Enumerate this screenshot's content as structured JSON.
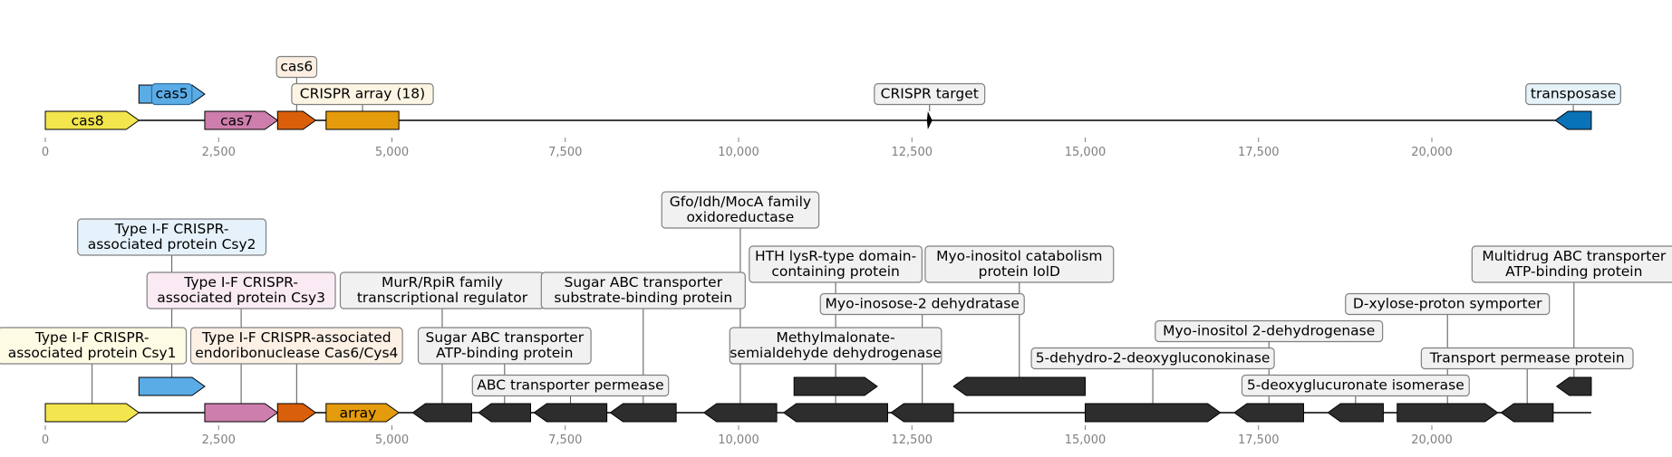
{
  "axis": {
    "ticks": [
      0,
      2500,
      5000,
      7500,
      10000,
      12500,
      15000,
      17500,
      20000
    ],
    "tick_labels": [
      "0",
      "2,500",
      "5,000",
      "7,500",
      "10,000",
      "12,500",
      "15,000",
      "17,500",
      "20,000"
    ]
  },
  "track1": {
    "line_end": 22300,
    "features": [
      {
        "name": "cas8",
        "start": 0,
        "end": 1350,
        "strand": 1,
        "color": "#f2e54e",
        "inline": "cas8"
      },
      {
        "name": "cas5",
        "start": 1350,
        "end": 2300,
        "strand": 1,
        "color": "#5aace6",
        "raised": true,
        "box": "cas5",
        "boxfill": "#5aace6",
        "boxstroke": "#2f6ea0"
      },
      {
        "name": "cas7",
        "start": 2300,
        "end": 3350,
        "strand": 1,
        "color": "#cd7eac",
        "inline": "cas7"
      },
      {
        "name": "cas6",
        "start": 3350,
        "end": 3900,
        "strand": 1,
        "color": "#d95f0b",
        "box": "cas6",
        "boxfill": "#fcefe2"
      },
      {
        "name": "CRISPR array (18)",
        "start": 4050,
        "end": 5100,
        "strand": 0,
        "color": "#e59c0c",
        "box": "CRISPR array (18)",
        "boxfill": "#fdf5e3"
      },
      {
        "name": "CRISPR target",
        "start": 12730,
        "end": 12780,
        "strand": 0,
        "color": "#000000",
        "box": "CRISPR target",
        "boxfill": "#f1f1f1"
      },
      {
        "name": "transposase",
        "start": 21780,
        "end": 22300,
        "strand": -1,
        "color": "#0a72b6",
        "box": "transposase",
        "boxfill": "#e5f2f9"
      }
    ]
  },
  "track2": {
    "line_end": 22300,
    "features": [
      {
        "name": "cas8",
        "start": 0,
        "end": 1350,
        "strand": 1,
        "color": "#f2e54e",
        "box": "Type I-F CRISPR-\nassociated protein Csy1",
        "boxfill": "#fdfbe3"
      },
      {
        "name": "cas5",
        "start": 1350,
        "end": 2300,
        "strand": 1,
        "color": "#5aace6",
        "raised": true,
        "box": "Type I-F CRISPR-\nassociated protein Csy2",
        "boxfill": "#e6f2fb"
      },
      {
        "name": "cas7",
        "start": 2300,
        "end": 3350,
        "strand": 1,
        "color": "#cd7eac",
        "box": "Type I-F CRISPR-\nassociated protein Csy3",
        "boxfill": "#f9eaf3"
      },
      {
        "name": "cas6",
        "start": 3350,
        "end": 3900,
        "strand": 1,
        "color": "#d95f0b",
        "box": "Type I-F CRISPR-associated\nendoribonuclease Cas6/Cys4",
        "boxfill": "#fdf0e5"
      },
      {
        "name": "array",
        "start": 4050,
        "end": 5100,
        "strand": 1,
        "color": "#e59c0c",
        "inline": "array"
      },
      {
        "name": "MurR/RpiR",
        "start": 5300,
        "end": 6150,
        "strand": -1,
        "color": "#2d2d2d",
        "box": "MurR/RpiR family\ntranscriptional regulator",
        "boxfill": "#f1f1f1"
      },
      {
        "name": "Sugar ABC ATP",
        "start": 6250,
        "end": 7000,
        "strand": -1,
        "color": "#2d2d2d",
        "box": "Sugar ABC transporter\nATP-binding protein",
        "boxfill": "#f1f1f1"
      },
      {
        "name": "ABC permease",
        "start": 7050,
        "end": 8100,
        "strand": -1,
        "color": "#2d2d2d",
        "box": "ABC transporter permease",
        "boxfill": "#f1f1f1"
      },
      {
        "name": "Sugar ABC SBP",
        "start": 8150,
        "end": 9100,
        "strand": -1,
        "color": "#2d2d2d",
        "box": "Sugar ABC transporter\nsubstrate-binding protein",
        "boxfill": "#f1f1f1"
      },
      {
        "name": "Gfo/Idh/MocA",
        "start": 9500,
        "end": 10550,
        "strand": -1,
        "color": "#2d2d2d",
        "box": "Gfo/Idh/MocA family\noxidoreductase",
        "boxfill": "#f1f1f1"
      },
      {
        "name": "HTH lysR",
        "start": 10800,
        "end": 12000,
        "strand": 1,
        "color": "#2d2d2d",
        "raised": true,
        "box": "HTH lysR-type domain-\ncontaining protein",
        "boxfill": "#f1f1f1"
      },
      {
        "name": "Methylmalonate",
        "start": 10650,
        "end": 12150,
        "strand": -1,
        "color": "#2d2d2d",
        "box": "Methylmalonate-\nsemialdehyde dehydrogenase",
        "boxfill": "#f1f1f1"
      },
      {
        "name": "Myo-inosose-2",
        "start": 12200,
        "end": 13100,
        "strand": -1,
        "color": "#2d2d2d",
        "box": "Myo-inosose-2 dehydratase",
        "boxfill": "#f1f1f1"
      },
      {
        "name": "IolD",
        "start": 13100,
        "end": 15000,
        "strand": -1,
        "color": "#2d2d2d",
        "raised": true,
        "box": "Myo-inositol catabolism\nprotein IolD",
        "boxfill": "#f1f1f1"
      },
      {
        "name": "5-dehydro",
        "start": 15000,
        "end": 16950,
        "strand": 1,
        "color": "#2d2d2d",
        "box": "5-dehydro-2-deoxygluconokinase",
        "boxfill": "#f1f1f1"
      },
      {
        "name": "Myo-inositol 2-DH",
        "start": 17150,
        "end": 18150,
        "strand": -1,
        "color": "#2d2d2d",
        "box": "Myo-inositol 2-dehydrogenase",
        "boxfill": "#f1f1f1"
      },
      {
        "name": "5-deoxyglucuronate",
        "start": 18500,
        "end": 19300,
        "strand": -1,
        "color": "#2d2d2d",
        "box": "5-deoxyglucuronate isomerase",
        "boxfill": "#f1f1f1"
      },
      {
        "name": "D-xylose",
        "start": 19500,
        "end": 20950,
        "strand": 1,
        "color": "#2d2d2d",
        "box": "D-xylose-proton symporter",
        "boxfill": "#f1f1f1"
      },
      {
        "name": "Transport permease",
        "start": 21000,
        "end": 21750,
        "strand": -1,
        "color": "#2d2d2d",
        "box": "Transport permease protein",
        "boxfill": "#f1f1f1"
      },
      {
        "name": "Multidrug ABC",
        "start": 21800,
        "end": 22300,
        "strand": -1,
        "color": "#2d2d2d",
        "raised": true,
        "box": "Multidrug ABC transporter\nATP-binding protein",
        "boxfill": "#f1f1f1"
      }
    ]
  }
}
